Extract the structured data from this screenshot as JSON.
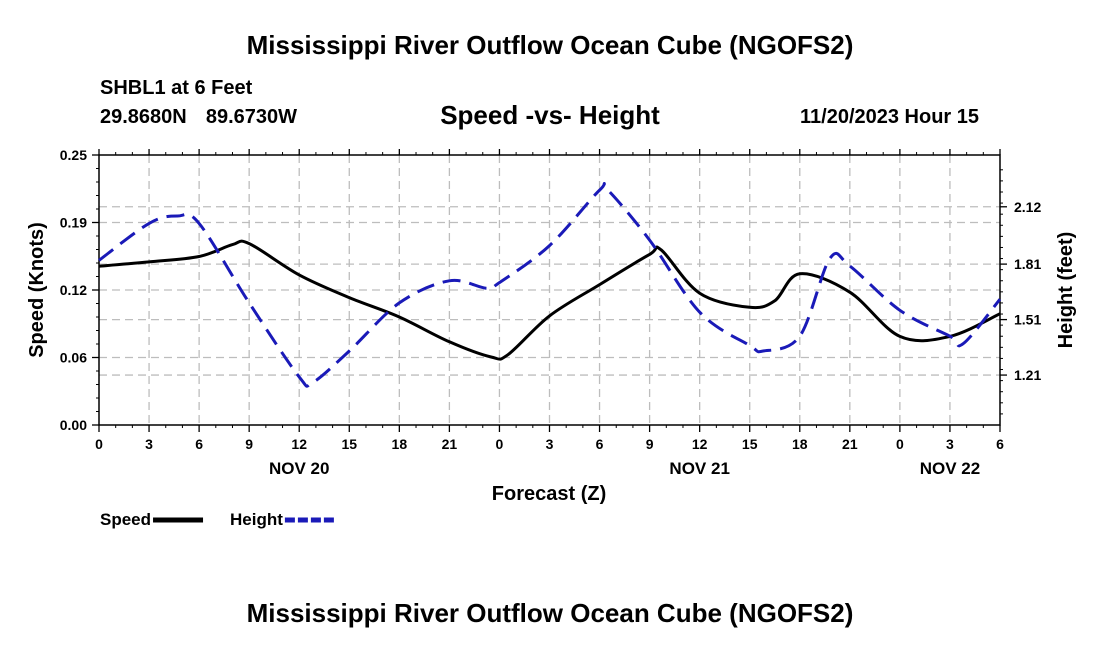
{
  "header": {
    "title": "Mississippi River Outflow Ocean Cube (NGOFS2)",
    "station": "SHBL1 at 6 Feet",
    "lat": "29.8680N",
    "lon": "89.6730W",
    "subtitle": "Speed -vs- Height",
    "datetime": "11/20/2023 Hour 15"
  },
  "footer": {
    "title": "Mississippi River Outflow Ocean Cube (NGOFS2)"
  },
  "chart_data": {
    "type": "line",
    "title": "Speed -vs- Height",
    "xlabel": "Forecast (Z)",
    "ylabel": "Speed (Knots)",
    "y2label": "Height (feet)",
    "x_range_hours": [
      0,
      54
    ],
    "x_ticks": [
      {
        "h": 0,
        "label": "0"
      },
      {
        "h": 3,
        "label": "3"
      },
      {
        "h": 6,
        "label": "6"
      },
      {
        "h": 9,
        "label": "9"
      },
      {
        "h": 12,
        "label": "12"
      },
      {
        "h": 15,
        "label": "15"
      },
      {
        "h": 18,
        "label": "18"
      },
      {
        "h": 21,
        "label": "21"
      },
      {
        "h": 24,
        "label": "0"
      },
      {
        "h": 27,
        "label": "3"
      },
      {
        "h": 30,
        "label": "6"
      },
      {
        "h": 33,
        "label": "9"
      },
      {
        "h": 36,
        "label": "12"
      },
      {
        "h": 39,
        "label": "15"
      },
      {
        "h": 42,
        "label": "18"
      },
      {
        "h": 45,
        "label": "21"
      },
      {
        "h": 48,
        "label": "0"
      },
      {
        "h": 51,
        "label": "3"
      },
      {
        "h": 54,
        "label": "6"
      }
    ],
    "date_labels": [
      {
        "h": 12,
        "label": "NOV 20"
      },
      {
        "h": 36,
        "label": "NOV 21"
      },
      {
        "h": 51,
        "label": "NOV 22"
      }
    ],
    "ylim": [
      0,
      0.25
    ],
    "y_ticks": [
      "0.00",
      "0.06",
      "0.12",
      "0.19",
      "0.25"
    ],
    "y_tick_values": [
      0,
      0.0625,
      0.125,
      0.1875,
      0.25
    ],
    "y2lim": [
      0.94,
      2.4
    ],
    "y2_ticks": [
      "1.21",
      "1.51",
      "1.81",
      "2.12"
    ],
    "y2_tick_values": [
      1.21,
      1.51,
      1.81,
      2.12
    ],
    "grid": true,
    "series": [
      {
        "name": "Speed",
        "axis": "left",
        "color": "#000000",
        "style": "solid",
        "hours": [
          0,
          3,
          6,
          8,
          9,
          12,
          15,
          18,
          21,
          23.5,
          24.5,
          27,
          30,
          33,
          33.7,
          36,
          39,
          40.5,
          42,
          45,
          48,
          51,
          54
        ],
        "values": [
          0.147,
          0.151,
          0.156,
          0.167,
          0.168,
          0.139,
          0.118,
          0.1,
          0.077,
          0.063,
          0.065,
          0.101,
          0.13,
          0.158,
          0.162,
          0.122,
          0.109,
          0.115,
          0.14,
          0.123,
          0.082,
          0.082,
          0.103
        ]
      },
      {
        "name": "Height",
        "axis": "right",
        "color": "#1a1ab8",
        "style": "dashed",
        "hours": [
          0,
          3,
          4.7,
          6,
          9,
          12,
          12.8,
          15,
          18,
          21,
          23.2,
          24,
          27,
          30,
          30.5,
          33,
          36,
          39,
          39.8,
          42,
          43.8,
          45,
          48,
          51,
          51.8,
          54
        ],
        "values": [
          1.83,
          2.03,
          2.07,
          2.03,
          1.6,
          1.2,
          1.17,
          1.34,
          1.6,
          1.72,
          1.68,
          1.71,
          1.91,
          2.21,
          2.21,
          1.94,
          1.55,
          1.37,
          1.34,
          1.42,
          1.84,
          1.8,
          1.56,
          1.42,
          1.38,
          1.62
        ]
      }
    ],
    "legend": [
      {
        "label": "Speed",
        "color": "#000000",
        "style": "solid"
      },
      {
        "label": "Height",
        "color": "#1a1ab8",
        "style": "dashed"
      }
    ]
  }
}
